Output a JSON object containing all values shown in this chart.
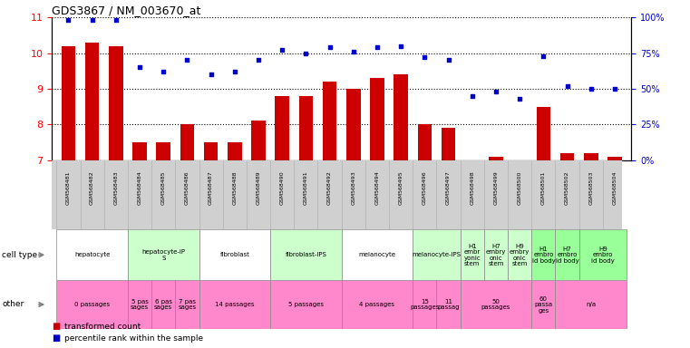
{
  "title": "GDS3867 / NM_003670_at",
  "gsm_labels": [
    "GSM568481",
    "GSM568482",
    "GSM568483",
    "GSM568484",
    "GSM568485",
    "GSM568486",
    "GSM568487",
    "GSM568488",
    "GSM568489",
    "GSM568490",
    "GSM568491",
    "GSM568492",
    "GSM568493",
    "GSM568494",
    "GSM568495",
    "GSM568496",
    "GSM568497",
    "GSM568498",
    "GSM568499",
    "GSM568500",
    "GSM568501",
    "GSM568502",
    "GSM568503",
    "GSM568504"
  ],
  "bar_values": [
    10.2,
    10.3,
    10.2,
    7.5,
    7.5,
    8.0,
    7.5,
    7.5,
    8.1,
    8.8,
    8.8,
    9.2,
    9.0,
    9.3,
    9.4,
    8.0,
    7.9,
    7.0,
    7.1,
    7.0,
    8.5,
    7.2,
    7.2,
    7.1
  ],
  "dot_values_pct": [
    98,
    98,
    98,
    65,
    62,
    70,
    60,
    62,
    70,
    77,
    75,
    79,
    76,
    79,
    80,
    72,
    70,
    45,
    48,
    43,
    73,
    52,
    50,
    50
  ],
  "ylim": [
    7,
    11
  ],
  "y2lim": [
    0,
    100
  ],
  "y_ticks": [
    7,
    8,
    9,
    10,
    11
  ],
  "y2_ticks": [
    0,
    25,
    50,
    75,
    100
  ],
  "y2_tick_labels": [
    "0%",
    "25%",
    "50%",
    "75%",
    "100%"
  ],
  "bar_color": "#cc0000",
  "dot_color": "#0000cc",
  "cell_type_groups": [
    {
      "label": "hepatocyte",
      "start": 0,
      "end": 2,
      "color": "#ffffff"
    },
    {
      "label": "hepatocyte-iP\nS",
      "start": 3,
      "end": 5,
      "color": "#ccffcc"
    },
    {
      "label": "fibroblast",
      "start": 6,
      "end": 8,
      "color": "#ffffff"
    },
    {
      "label": "fibroblast-IPS",
      "start": 9,
      "end": 11,
      "color": "#ccffcc"
    },
    {
      "label": "melanocyte",
      "start": 12,
      "end": 14,
      "color": "#ffffff"
    },
    {
      "label": "melanocyte-IPS",
      "start": 15,
      "end": 16,
      "color": "#ccffcc"
    },
    {
      "label": "H1\nembr\nyonic\nstem",
      "start": 17,
      "end": 17,
      "color": "#ccffcc"
    },
    {
      "label": "H7\nembry\nonic\nstem",
      "start": 18,
      "end": 18,
      "color": "#ccffcc"
    },
    {
      "label": "H9\nembry\nonic\nstem",
      "start": 19,
      "end": 19,
      "color": "#ccffcc"
    },
    {
      "label": "H1\nembro\nid body",
      "start": 20,
      "end": 20,
      "color": "#99ff99"
    },
    {
      "label": "H7\nembro\nid body",
      "start": 21,
      "end": 21,
      "color": "#99ff99"
    },
    {
      "label": "H9\nembro\nid body",
      "start": 22,
      "end": 23,
      "color": "#99ff99"
    }
  ],
  "other_groups": [
    {
      "label": "0 passages",
      "start": 0,
      "end": 2
    },
    {
      "label": "5 pas\nsages",
      "start": 3,
      "end": 3
    },
    {
      "label": "6 pas\nsages",
      "start": 4,
      "end": 4
    },
    {
      "label": "7 pas\nsages",
      "start": 5,
      "end": 5
    },
    {
      "label": "14 passages",
      "start": 6,
      "end": 8
    },
    {
      "label": "5 passages",
      "start": 9,
      "end": 11
    },
    {
      "label": "4 passages",
      "start": 12,
      "end": 14
    },
    {
      "label": "15\npassages",
      "start": 15,
      "end": 15
    },
    {
      "label": "11\npassag",
      "start": 16,
      "end": 16
    },
    {
      "label": "50\npassages",
      "start": 17,
      "end": 19
    },
    {
      "label": "60\npassa\nges",
      "start": 20,
      "end": 20
    },
    {
      "label": "n/a",
      "start": 21,
      "end": 23
    }
  ],
  "gsm_bg_color": "#d0d0d0",
  "cell_type_border": "#888888",
  "other_color": "#ff88cc",
  "legend_bar_label": "transformed count",
  "legend_dot_label": "percentile rank within the sample"
}
